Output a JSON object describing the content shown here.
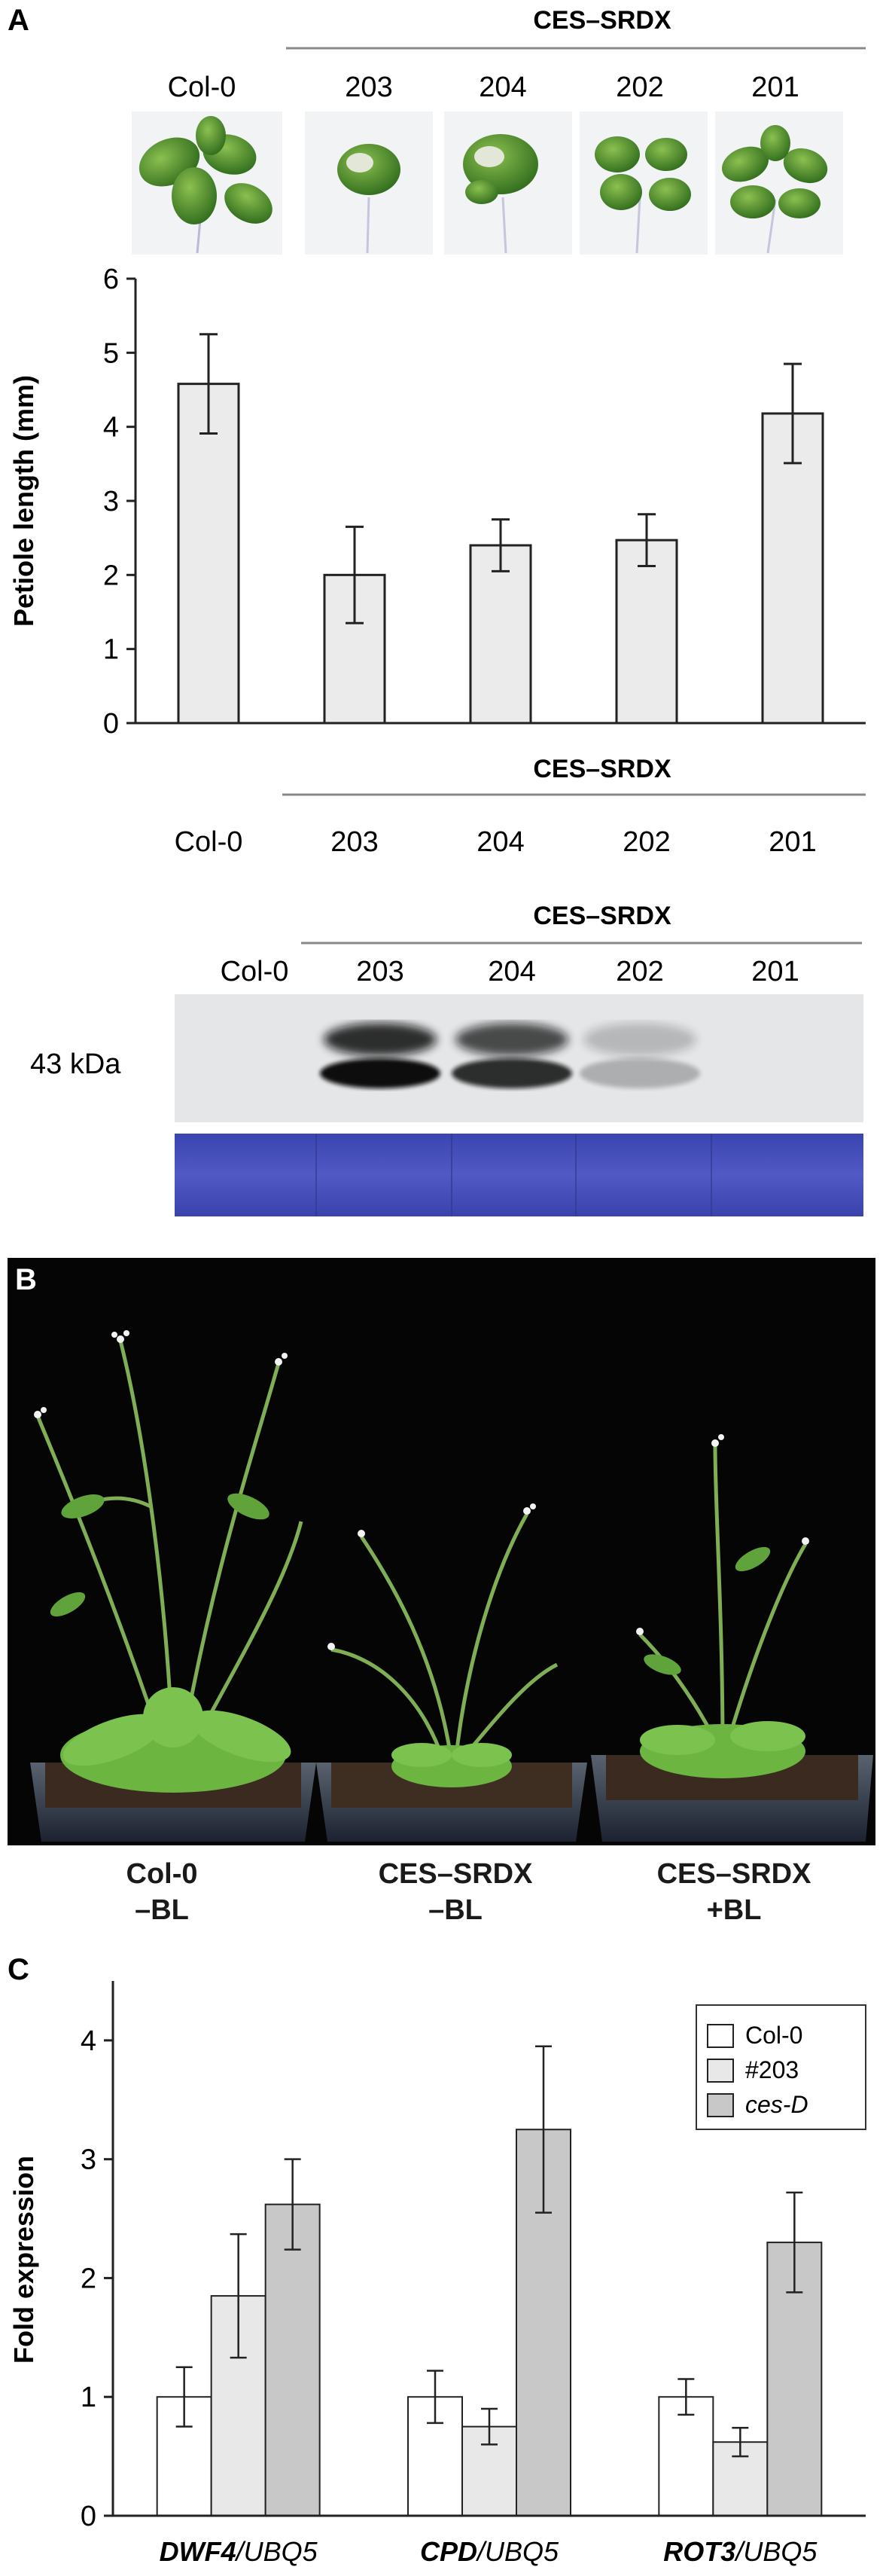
{
  "panels": {
    "A": {
      "label": "A",
      "seedling_header": "CES–SRDX",
      "seedlings": [
        "Col-0",
        "203",
        "204",
        "202",
        "201"
      ],
      "blot": {
        "header": "CES–SRDX",
        "lanes": [
          "Col-0",
          "203",
          "204",
          "202",
          "201"
        ],
        "marker": "43 kDa",
        "band_intensity": [
          0,
          1.0,
          0.85,
          0.25,
          0.03
        ]
      }
    },
    "B": {
      "label": "B",
      "captions": [
        {
          "line1": "Col-0",
          "line2": "–BL"
        },
        {
          "line1": "CES–SRDX",
          "line2": "–BL"
        },
        {
          "line1": "CES–SRDX",
          "line2": "+BL"
        }
      ]
    },
    "C": {
      "label": "C"
    }
  },
  "chart_data": [
    {
      "type": "bar",
      "panel": "A",
      "categories": [
        "Col-0",
        "203",
        "204",
        "202",
        "201"
      ],
      "group_label": "CES–SRDX",
      "values": [
        4.58,
        2.0,
        2.4,
        2.47,
        4.18
      ],
      "errors": [
        0.67,
        0.65,
        0.35,
        0.35,
        0.67
      ],
      "ylabel": "Petiole length (mm)",
      "ylim": [
        0,
        6
      ],
      "yticks": [
        "0",
        "1",
        "2",
        "3",
        "4",
        "5",
        "6"
      ],
      "bar_color": "#ebebeb",
      "grid": false
    },
    {
      "type": "bar",
      "panel": "C",
      "groups": [
        {
          "bold": "DWF4",
          "rest": "/UBQ5"
        },
        {
          "bold": "CPD",
          "rest": "/UBQ5"
        },
        {
          "bold": "ROT3",
          "rest": "/UBQ5"
        }
      ],
      "series": [
        {
          "name": "Col-0",
          "italic": false,
          "color": "#ffffff",
          "values": [
            1.0,
            1.0,
            1.0
          ],
          "errors": [
            0.25,
            0.22,
            0.15
          ]
        },
        {
          "name": "#203",
          "italic": false,
          "color": "#e8e8e8",
          "values": [
            1.85,
            0.75,
            0.62
          ],
          "errors": [
            0.52,
            0.15,
            0.12
          ]
        },
        {
          "name": "ces-D",
          "italic": true,
          "color": "#c8c8c8",
          "values": [
            2.62,
            3.25,
            2.3
          ],
          "errors": [
            0.38,
            0.7,
            0.42
          ]
        }
      ],
      "ylabel": "Fold expression",
      "ylim": [
        0,
        4.5
      ],
      "yticks": [
        "0",
        "1",
        "2",
        "3",
        "4"
      ],
      "legend": "top-right",
      "grid": false
    }
  ]
}
